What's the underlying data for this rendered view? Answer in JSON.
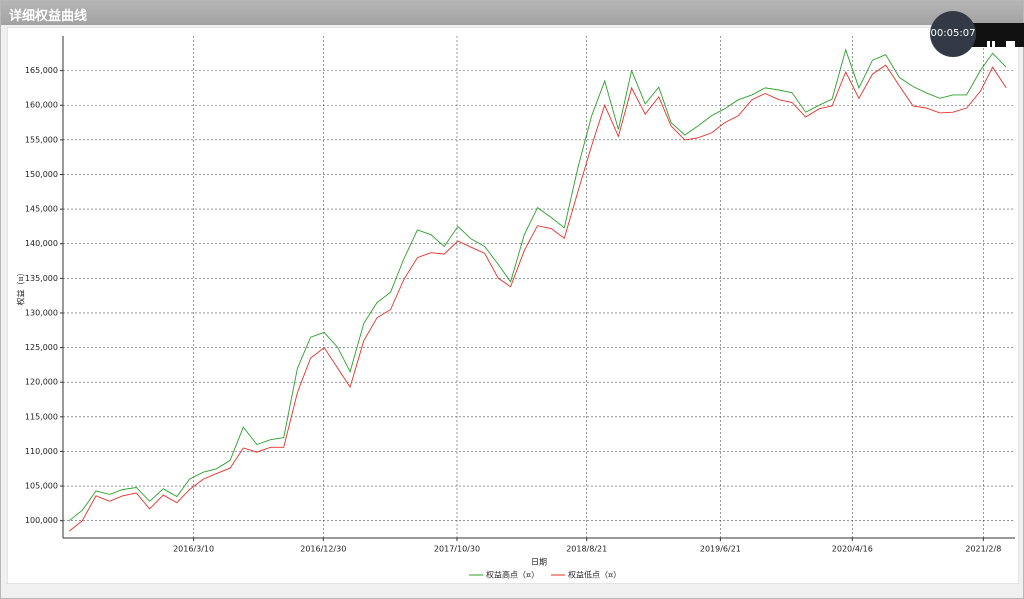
{
  "chart_data": {
    "type": "line",
    "title": "详细权益曲线",
    "x_label": "日期",
    "y_label": "权益（¤）",
    "xlim": [
      "2015/5/18",
      "2021/4/21"
    ],
    "ylim": [
      97500,
      170000
    ],
    "xticks": [
      "2016/3/10",
      "2016/12/30",
      "2017/10/30",
      "2018/8/21",
      "2019/6/21",
      "2020/4/16",
      "2021/2/8"
    ],
    "yticks": [
      {
        "value": 100000,
        "label": "100,000"
      },
      {
        "value": 105000,
        "label": "105,000"
      },
      {
        "value": 110000,
        "label": "110,000"
      },
      {
        "value": 115000,
        "label": "115,000"
      },
      {
        "value": 120000,
        "label": "120,000"
      },
      {
        "value": 125000,
        "label": "125,000"
      },
      {
        "value": 130000,
        "label": "130,000"
      },
      {
        "value": 135000,
        "label": "135,000"
      },
      {
        "value": 140000,
        "label": "140,000"
      },
      {
        "value": 145000,
        "label": "145,000"
      },
      {
        "value": 150000,
        "label": "150,000"
      },
      {
        "value": 155000,
        "label": "155,000"
      },
      {
        "value": 160000,
        "label": "160,000"
      },
      {
        "value": 165000,
        "label": "165,000"
      }
    ],
    "grid": true,
    "x": [
      "2015/6/1",
      "2015/7/1",
      "2015/8/1",
      "2015/9/1",
      "2015/10/1",
      "2015/11/1",
      "2015/12/1",
      "2016/1/1",
      "2016/2/1",
      "2016/3/1",
      "2016/4/1",
      "2016/5/1",
      "2016/6/1",
      "2016/7/1",
      "2016/8/1",
      "2016/9/1",
      "2016/10/1",
      "2016/11/1",
      "2016/12/1",
      "2017/1/1",
      "2017/2/1",
      "2017/3/1",
      "2017/4/1",
      "2017/5/1",
      "2017/6/1",
      "2017/7/1",
      "2017/8/1",
      "2017/9/1",
      "2017/10/1",
      "2017/11/1",
      "2017/12/1",
      "2018/1/1",
      "2018/2/1",
      "2018/3/1",
      "2018/4/1",
      "2018/5/1",
      "2018/6/1",
      "2018/7/1",
      "2018/8/1",
      "2018/9/1",
      "2018/10/1",
      "2018/11/1",
      "2018/12/1",
      "2019/1/1",
      "2019/2/1",
      "2019/3/1",
      "2019/4/1",
      "2019/5/1",
      "2019/6/1",
      "2019/7/1",
      "2019/8/1",
      "2019/9/1",
      "2019/10/1",
      "2019/11/1",
      "2019/12/1",
      "2020/1/1",
      "2020/2/1",
      "2020/3/1",
      "2020/4/1",
      "2020/5/1",
      "2020/6/1",
      "2020/7/1",
      "2020/8/1",
      "2020/9/1",
      "2020/10/1",
      "2020/11/1",
      "2020/12/1",
      "2021/1/1",
      "2021/2/1",
      "2021/3/1",
      "2021/4/1"
    ],
    "series": [
      {
        "name": "权益高点（¤）",
        "color": "#2ca02c",
        "values": [
          100000,
          101500,
          104300,
          103800,
          104500,
          104800,
          102800,
          104600,
          103500,
          106000,
          107000,
          107500,
          108700,
          113500,
          111000,
          111700,
          112000,
          122000,
          126500,
          127200,
          125000,
          121500,
          128500,
          131500,
          133000,
          137800,
          142000,
          141300,
          139600,
          142500,
          140700,
          139600,
          137000,
          134500,
          141300,
          145200,
          143800,
          142300,
          151000,
          158400,
          163500,
          156500,
          165000,
          160200,
          162600,
          157500,
          155700,
          157000,
          158500,
          159500,
          160800,
          161500,
          162500,
          162200,
          161800,
          159000,
          160000,
          160900,
          168000,
          162500,
          166500,
          167300,
          164000,
          162700,
          161800,
          161000,
          161500,
          161500,
          165000,
          167500,
          165500
        ]
      },
      {
        "name": "权益低点（¤）",
        "color": "#e8302a",
        "values": [
          98500,
          100000,
          103600,
          102800,
          103600,
          104000,
          101700,
          103700,
          102600,
          104500,
          106000,
          106800,
          107600,
          110500,
          109900,
          110600,
          110600,
          118500,
          123500,
          125000,
          122000,
          119300,
          126000,
          129300,
          130500,
          134800,
          138000,
          138700,
          138500,
          140400,
          139500,
          138600,
          135000,
          133800,
          139000,
          142600,
          142200,
          140800,
          147500,
          154100,
          160000,
          155500,
          162500,
          158700,
          161200,
          157000,
          155000,
          155300,
          156000,
          157500,
          158500,
          160800,
          161700,
          160800,
          160400,
          158300,
          159500,
          159900,
          164800,
          161000,
          164500,
          165800,
          162800,
          159900,
          159600,
          158900,
          159000,
          159600,
          162000,
          165500,
          162500
        ]
      }
    ]
  },
  "recorder": {
    "time": "00:05:07"
  }
}
